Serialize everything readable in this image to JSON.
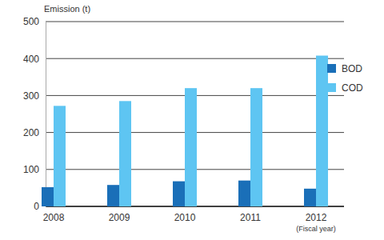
{
  "chart_data": {
    "type": "bar",
    "y_label": "Emission (t)",
    "x_label": "(Fiscal year)",
    "categories": [
      "2008",
      "2009",
      "2010",
      "2011",
      "2012"
    ],
    "series": [
      {
        "name": "BOD",
        "color": "#1a6fb8",
        "values": [
          52,
          58,
          68,
          70,
          48
        ]
      },
      {
        "name": "COD",
        "color": "#5ec5f2",
        "values": [
          272,
          285,
          320,
          320,
          408
        ]
      }
    ],
    "ylim": [
      0,
      500
    ],
    "yticks": [
      0,
      100,
      200,
      300,
      400,
      500
    ],
    "grid": true,
    "legend": "right"
  }
}
